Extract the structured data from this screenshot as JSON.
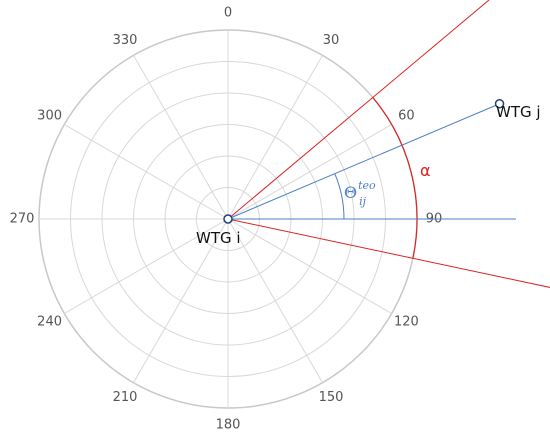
{
  "diagram": {
    "angle_ticks": [
      {
        "deg": 0,
        "label": "0"
      },
      {
        "deg": 30,
        "label": "30"
      },
      {
        "deg": 60,
        "label": "60"
      },
      {
        "deg": 90,
        "label": "90"
      },
      {
        "deg": 120,
        "label": "120"
      },
      {
        "deg": 150,
        "label": "150"
      },
      {
        "deg": 180,
        "label": "180"
      },
      {
        "deg": 210,
        "label": "210"
      },
      {
        "deg": 240,
        "label": "240"
      },
      {
        "deg": 270,
        "label": "270"
      },
      {
        "deg": 300,
        "label": "300"
      },
      {
        "deg": 330,
        "label": "330"
      }
    ],
    "ring_count": 6,
    "spoke_step_deg": 30,
    "turbine_i": {
      "label": "WTG i"
    },
    "turbine_j": {
      "label": "WTG j",
      "bearing_deg": 67
    },
    "reference_bearing_deg": 90,
    "sector": {
      "label": "α",
      "bounds_deg": [
        50,
        102
      ]
    },
    "theta": {
      "symbol": "Θ",
      "subscript": "ij",
      "superscript": "teo"
    },
    "colors": {
      "grid": "#d8d8d8",
      "outer_ring": "#c8c8c8",
      "sector": "#dd2222",
      "theta": "#4a7fc1",
      "marker": "#1f3f7a",
      "tick_text": "#555555",
      "label_text": "#111111"
    }
  }
}
